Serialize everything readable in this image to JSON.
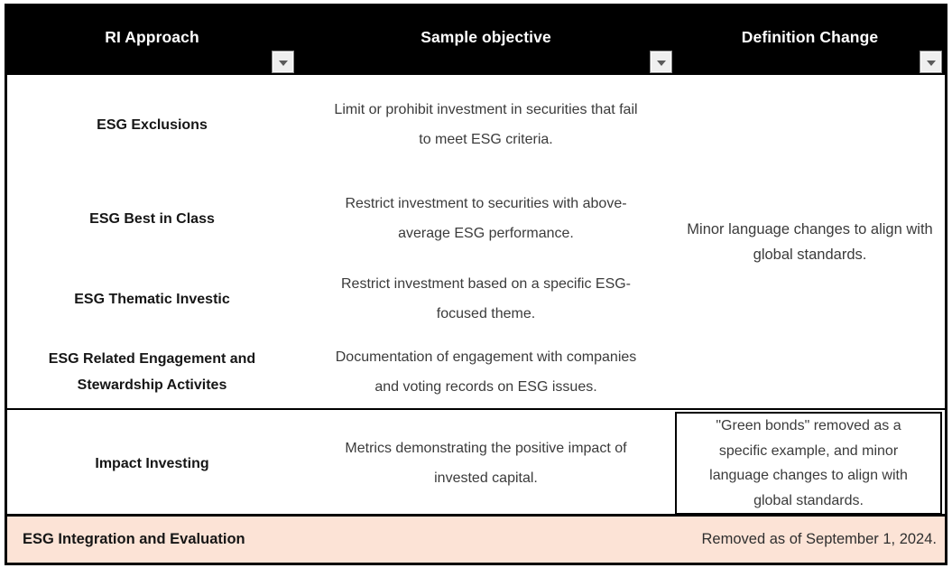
{
  "table": {
    "columns": [
      {
        "label": "RI Approach"
      },
      {
        "label": "Sample objective"
      },
      {
        "label": "Definition Change"
      }
    ],
    "rows": [
      {
        "approach": "ESG Exclusions",
        "objective": "Limit or prohibit investment in securities that fail to meet ESG criteria."
      },
      {
        "approach": "ESG Best in Class",
        "objective": "Restrict investment to securities with above-average ESG performance."
      },
      {
        "approach": "ESG Thematic Investic",
        "objective": "Restrict investment based on a specific ESG-focused theme."
      },
      {
        "approach": "ESG Related Engagement and Stewardship Activites",
        "objective": "Documentation of engagement with companies and voting records on ESG issues."
      }
    ],
    "merged_definition": "Minor language changes to align with global standards.",
    "impact_row": {
      "approach": "Impact Investing",
      "objective": "Metrics demonstrating the positive impact of invested capital.",
      "definition": "\"Green bonds\" removed as a specific example, and minor language changes to align with global standards."
    },
    "footer_row": {
      "approach": "ESG Integration and Evaluation",
      "definition": "Removed as of September 1, 2024."
    },
    "colors": {
      "header_bg": "#000000",
      "header_text": "#FFFFFF",
      "footer_bg": "#FCE3D6",
      "body_text": "#3B3B3B",
      "border": "#000000"
    }
  }
}
